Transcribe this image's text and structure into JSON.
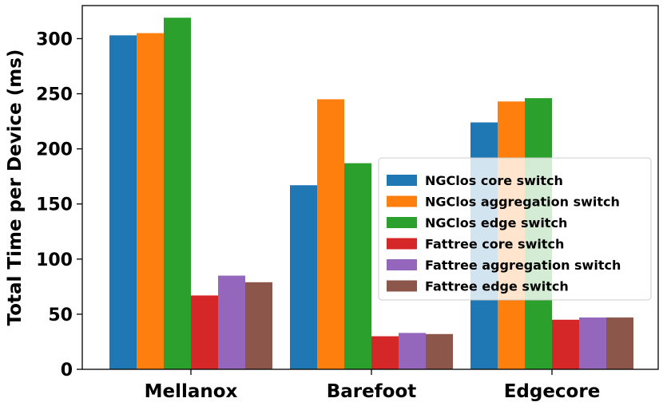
{
  "chart_data": {
    "type": "bar",
    "title": "",
    "xlabel": "",
    "ylabel": "Total Time per Device (ms)",
    "ylim": [
      0,
      330
    ],
    "yticks": [
      0,
      50,
      100,
      150,
      200,
      250,
      300
    ],
    "grid": false,
    "legend_position": "center-right",
    "categories": [
      "Mellanox",
      "Barefoot",
      "Edgecore"
    ],
    "series": [
      {
        "name": "NGClos core switch",
        "color": "#1f77b4",
        "values": [
          303,
          167,
          224
        ]
      },
      {
        "name": "NGClos aggregation switch",
        "color": "#ff7f0e",
        "values": [
          305,
          245,
          243
        ]
      },
      {
        "name": "NGClos edge switch",
        "color": "#2ca02c",
        "values": [
          319,
          187,
          246
        ]
      },
      {
        "name": "Fattree core switch",
        "color": "#d62728",
        "values": [
          67,
          30,
          45
        ]
      },
      {
        "name": "Fattree aggregation switch",
        "color": "#9467bd",
        "values": [
          85,
          33,
          47
        ]
      },
      {
        "name": "Fattree edge switch",
        "color": "#8c564b",
        "values": [
          79,
          32,
          47
        ]
      }
    ]
  }
}
